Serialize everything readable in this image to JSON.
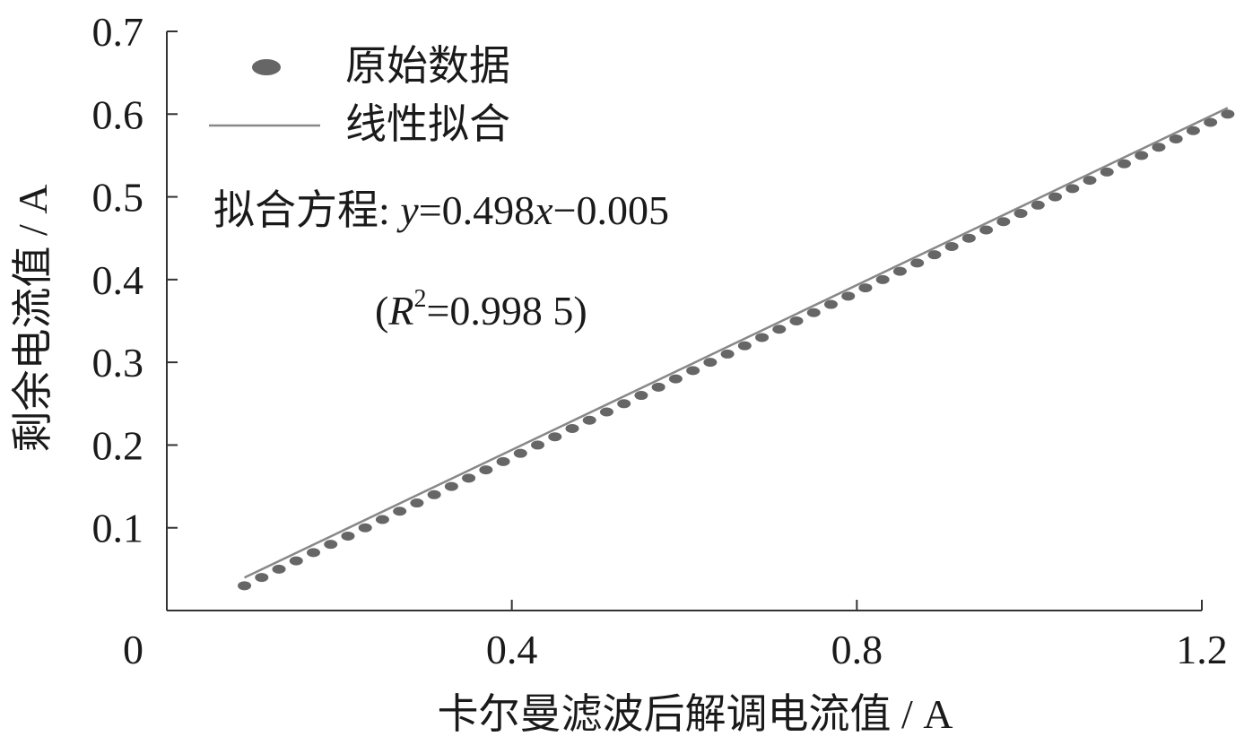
{
  "chart_data": {
    "type": "scatter",
    "x_label": "卡尔曼滤波后解调电流值 / A",
    "y_label": "剩余电流值 / A",
    "annotations": [
      [
        "拟合方程: ",
        "y",
        "=0.498",
        "x",
        "−0.005"
      ],
      [
        "(",
        "R",
        "2",
        "=0.998 5)"
      ]
    ],
    "xlim": [
      0,
      1.2
    ],
    "xticks": [
      0,
      0.4,
      0.8,
      1.2
    ],
    "ylim": [
      0,
      0.7
    ],
    "yticks": [
      0.1,
      0.2,
      0.3,
      0.4,
      0.5,
      0.6,
      0.7
    ],
    "series": [
      {
        "name": "原始数据",
        "color": "#666666",
        "type": "scatter",
        "x": [
          0.09,
          0.11,
          0.13,
          0.15,
          0.17,
          0.19,
          0.21,
          0.23,
          0.25,
          0.27,
          0.29,
          0.31,
          0.33,
          0.35,
          0.37,
          0.39,
          0.41,
          0.43,
          0.45,
          0.47,
          0.49,
          0.51,
          0.53,
          0.55,
          0.57,
          0.59,
          0.61,
          0.63,
          0.65,
          0.67,
          0.69,
          0.71,
          0.73,
          0.75,
          0.77,
          0.79,
          0.81,
          0.83,
          0.85,
          0.87,
          0.89,
          0.91,
          0.93,
          0.95,
          0.97,
          0.99,
          1.01,
          1.03,
          1.05,
          1.07,
          1.09,
          1.11,
          1.13,
          1.15,
          1.17,
          1.19,
          1.21,
          1.23
        ],
        "values": [
          0.03,
          0.04,
          0.05,
          0.06,
          0.07,
          0.08,
          0.09,
          0.1,
          0.11,
          0.12,
          0.13,
          0.14,
          0.15,
          0.16,
          0.17,
          0.18,
          0.19,
          0.2,
          0.21,
          0.22,
          0.23,
          0.24,
          0.25,
          0.26,
          0.27,
          0.28,
          0.29,
          0.3,
          0.31,
          0.32,
          0.33,
          0.34,
          0.35,
          0.36,
          0.37,
          0.38,
          0.39,
          0.4,
          0.41,
          0.42,
          0.43,
          0.44,
          0.45,
          0.46,
          0.47,
          0.48,
          0.49,
          0.5,
          0.51,
          0.52,
          0.53,
          0.54,
          0.55,
          0.56,
          0.57,
          0.58,
          0.59,
          0.6
        ]
      },
      {
        "name": "线性拟合",
        "color": "#888888",
        "type": "line",
        "x": [
          0.09,
          1.23
        ],
        "values": [
          0.0398,
          0.6075
        ]
      }
    ]
  }
}
